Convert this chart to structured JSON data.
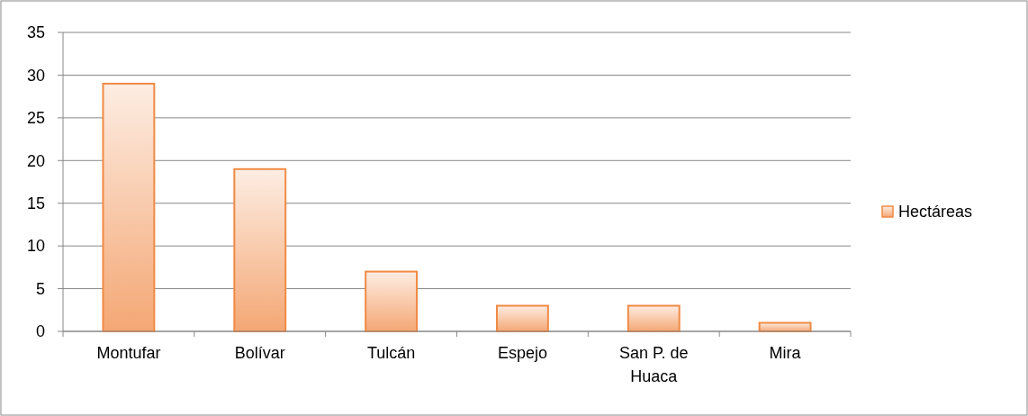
{
  "chart_data": {
    "type": "bar",
    "categories": [
      "Montufar",
      "Bolívar",
      "Tulcán",
      "Espejo",
      "San P. de Huaca",
      "Mira"
    ],
    "series": [
      {
        "name": "Hectáreas",
        "color": "#f08a45",
        "values": [
          29,
          19,
          7,
          3,
          3,
          1
        ]
      }
    ],
    "ylim": [
      0,
      35
    ],
    "yticks": [
      0,
      5,
      10,
      15,
      20,
      25,
      30,
      35
    ],
    "grid": "y",
    "legend": "right"
  }
}
